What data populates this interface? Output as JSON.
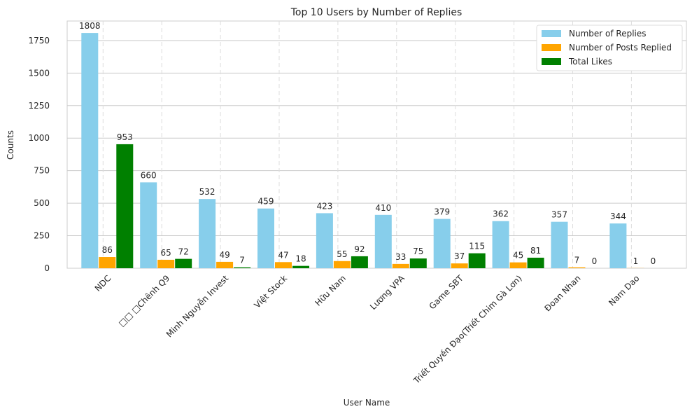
{
  "chart_data": {
    "type": "bar",
    "title": "Top 10 Users by Number of Replies",
    "xlabel": "User Name",
    "ylabel": "Counts",
    "ylim": [
      0,
      1900
    ],
    "yticks": [
      0,
      250,
      500,
      750,
      1000,
      1250,
      1500,
      1750
    ],
    "grid": true,
    "legend_position": "top-right",
    "categories": [
      "NDC",
      "□□ □Chênh Q9",
      "Minh Nguyễn Invest",
      "Việt Stock",
      "Hữu Nam",
      "Lương VPA",
      "Game SBT",
      "Triết Quyền Đạo(Triết Chim Gà Lơn)",
      "Đoan Nhan",
      "Nam Dao"
    ],
    "series": [
      {
        "name": "Number of Replies",
        "color": "#87ceeb",
        "values": [
          1808,
          660,
          532,
          459,
          423,
          410,
          379,
          362,
          357,
          344
        ]
      },
      {
        "name": "Number of Posts Replied",
        "color": "#ffa500",
        "values": [
          86,
          65,
          49,
          47,
          55,
          33,
          37,
          45,
          7,
          1
        ]
      },
      {
        "name": "Total Likes",
        "color": "#008000",
        "values": [
          953,
          72,
          7,
          18,
          92,
          75,
          115,
          81,
          0,
          0
        ]
      }
    ]
  }
}
